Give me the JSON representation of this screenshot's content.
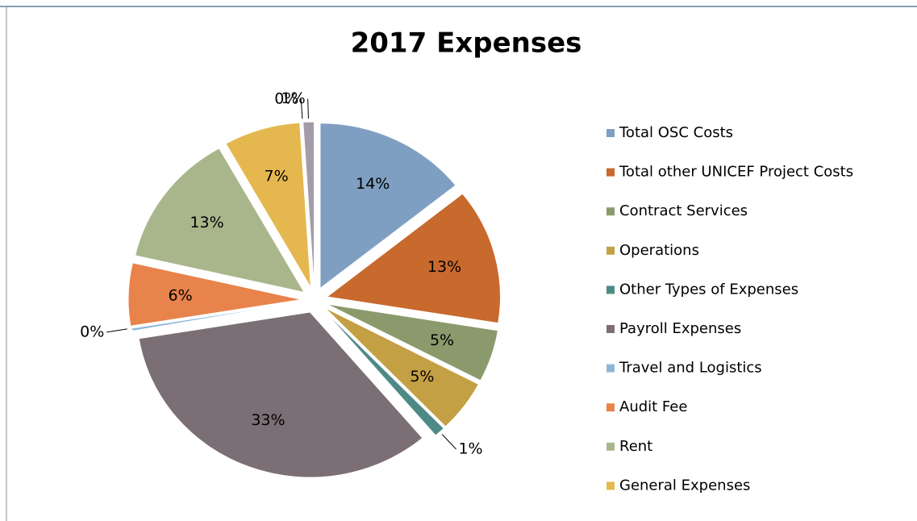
{
  "chart_data": {
    "type": "pie",
    "title": "2017 Expenses",
    "categories": [
      "Total OSC Costs",
      "Total other UNICEF Project Costs",
      "Contract Services",
      "Operations",
      "Other Types of Expenses",
      "Payroll Expenses",
      "Travel and Logistics",
      "Audit Fee",
      "Rent",
      "General Expenses",
      null,
      null
    ],
    "values": [
      14,
      13,
      5,
      5,
      1,
      33,
      0,
      6,
      13,
      7,
      0,
      1
    ],
    "value_labels": [
      "14%",
      "13%",
      "5%",
      "5%",
      "1%",
      "33%",
      "0%",
      "6%",
      "13%",
      "7%",
      "0%",
      "1%"
    ],
    "colors": [
      "#7f9fc2",
      "#c8692e",
      "#8b9a6c",
      "#c4a044",
      "#4e8a85",
      "#7b6f75",
      "#8fb6da",
      "#e8834b",
      "#a9b68b",
      "#e5b84f",
      "#c9a766",
      "#a39ca8"
    ],
    "legend": "right"
  }
}
